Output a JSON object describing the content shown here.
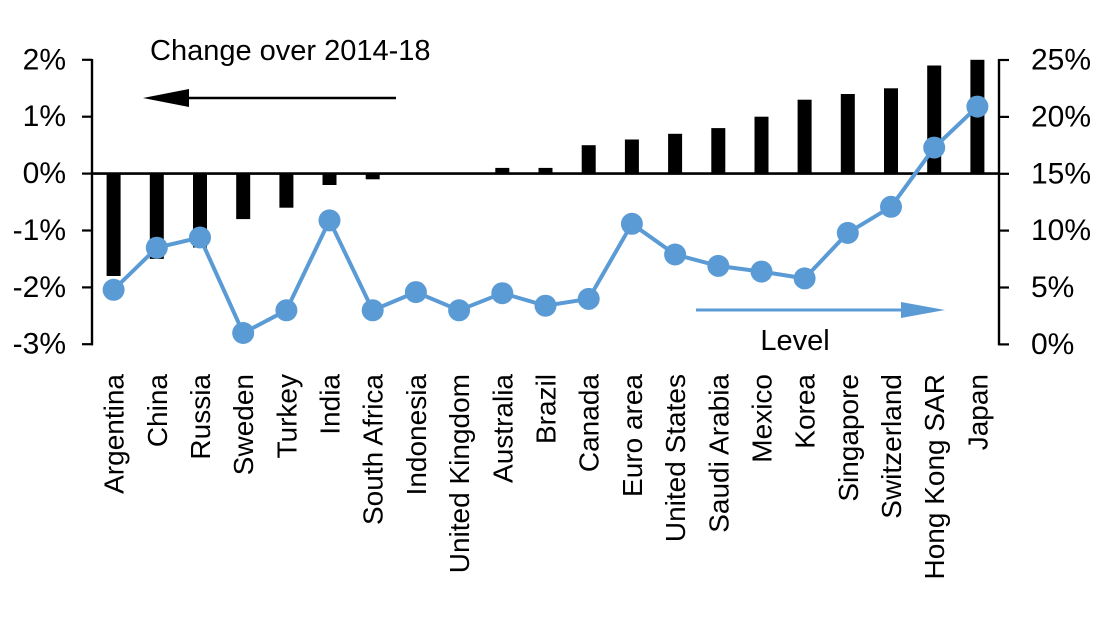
{
  "chart_data": {
    "type": "bar",
    "subtype": "combo-bar-line-dual-axis",
    "grid": false,
    "legend_position": "none",
    "background": "#ffffff",
    "categories": [
      "Argentina",
      "China",
      "Russia",
      "Sweden",
      "Turkey",
      "India",
      "South Africa",
      "Indonesia",
      "United Kingdom",
      "Australia",
      "Brazil",
      "Canada",
      "Euro area",
      "United States",
      "Saudi Arabia",
      "Mexico",
      "Korea",
      "Singapore",
      "Switzerland",
      "Hong Kong SAR",
      "Japan"
    ],
    "series": [
      {
        "name": "Change over 2014-18",
        "chart": "bar",
        "axis": "left",
        "color": "#000000",
        "unit": "%",
        "values": [
          -1.8,
          -1.5,
          -1.3,
          -0.8,
          -0.6,
          -0.2,
          -0.1,
          0.0,
          0.0,
          0.1,
          0.1,
          0.5,
          0.6,
          0.7,
          0.8,
          1.0,
          1.3,
          1.4,
          1.5,
          1.9,
          2.0
        ]
      },
      {
        "name": "Level",
        "chart": "line",
        "axis": "right",
        "color": "#5B9BD5",
        "unit": "%",
        "values": [
          4.8,
          8.5,
          9.4,
          1.0,
          3.0,
          10.9,
          3.0,
          4.6,
          3.0,
          4.5,
          3.4,
          4.0,
          10.6,
          7.9,
          6.9,
          6.4,
          5.8,
          9.8,
          12.1,
          17.3,
          20.9
        ]
      }
    ],
    "left_axis": {
      "min": -3,
      "max": 2,
      "tick_values": [
        2,
        1,
        0,
        -1,
        -2,
        -3
      ],
      "tick_labels": [
        "2%",
        "1%",
        "0%",
        "-1%",
        "-2%",
        "-3%"
      ]
    },
    "right_axis": {
      "min": 0,
      "max": 25,
      "tick_values": [
        25,
        20,
        15,
        10,
        5,
        0
      ],
      "tick_labels": [
        "25%",
        "20%",
        "15%",
        "10%",
        "5%",
        "0%"
      ]
    },
    "annotations": {
      "bar_series_label": "Change over 2014-18",
      "bar_series_arrow_direction": "left",
      "line_series_label": "Level",
      "line_series_arrow_direction": "right"
    },
    "colors": {
      "bar": "#000000",
      "line": "#5B9BD5",
      "axis": "#000000",
      "text": "#000000"
    }
  }
}
